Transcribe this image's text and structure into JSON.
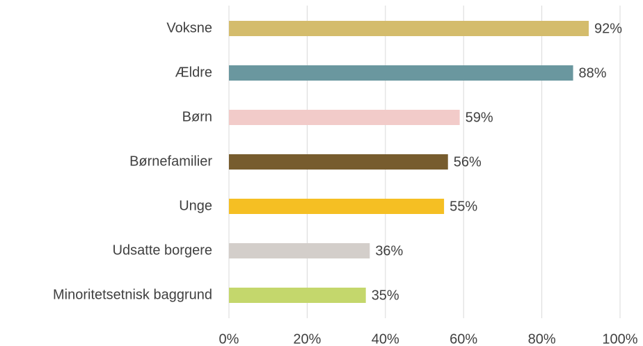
{
  "chart_data": {
    "type": "bar",
    "orientation": "horizontal",
    "categories": [
      "Voksne",
      "Ældre",
      "Børn",
      "Børnefamilier",
      "Unge",
      "Udsatte borgere",
      "Minoritetsetnisk baggrund"
    ],
    "values": [
      92,
      88,
      59,
      56,
      55,
      36,
      35
    ],
    "value_labels": [
      "92%",
      "88%",
      "59%",
      "56%",
      "55%",
      "36%",
      "35%"
    ],
    "colors": [
      "#d4bc6c",
      "#6a979f",
      "#f2cbc9",
      "#775c2e",
      "#f5bf23",
      "#d3ceca",
      "#c4d76c"
    ],
    "xlim": [
      0,
      100
    ],
    "xticks": [
      {
        "value": 0,
        "label": "0%"
      },
      {
        "value": 20,
        "label": "20%"
      },
      {
        "value": 40,
        "label": "40%"
      },
      {
        "value": 60,
        "label": "60%"
      },
      {
        "value": 80,
        "label": "80%"
      },
      {
        "value": 100,
        "label": "100%"
      }
    ],
    "grid": true
  }
}
